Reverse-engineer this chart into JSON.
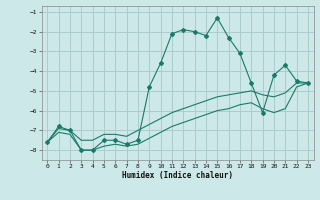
{
  "bg_color": "#cce8e8",
  "grid_color": "#aacccc",
  "line_color": "#1a7a6a",
  "marker_color": "#1a7a6a",
  "xlabel": "Humidex (Indice chaleur)",
  "xlim": [
    -0.5,
    23.5
  ],
  "ylim": [
    -8.5,
    -0.7
  ],
  "yticks": [
    -8,
    -7,
    -6,
    -5,
    -4,
    -3,
    -2,
    -1
  ],
  "xticks": [
    0,
    1,
    2,
    3,
    4,
    5,
    6,
    7,
    8,
    9,
    10,
    11,
    12,
    13,
    14,
    15,
    16,
    17,
    18,
    19,
    20,
    21,
    22,
    23
  ],
  "main_x": [
    0,
    1,
    2,
    3,
    4,
    5,
    6,
    7,
    8,
    9,
    10,
    11,
    12,
    13,
    14,
    15,
    16,
    17,
    18,
    19,
    20,
    21,
    22,
    23
  ],
  "main_y": [
    -7.6,
    -6.8,
    -7.0,
    -8.0,
    -8.0,
    -7.5,
    -7.5,
    -7.7,
    -7.5,
    -4.8,
    -3.6,
    -2.1,
    -1.9,
    -2.0,
    -2.2,
    -1.3,
    -2.3,
    -3.1,
    -4.6,
    -6.1,
    -4.2,
    -3.7,
    -4.5,
    -4.6
  ],
  "lower_x": [
    0,
    1,
    2,
    3,
    4,
    5,
    6,
    7,
    8,
    9,
    10,
    11,
    12,
    13,
    14,
    15,
    16,
    17,
    18,
    19,
    20,
    21,
    22,
    23
  ],
  "lower_y": [
    -7.6,
    -7.1,
    -7.2,
    -8.0,
    -8.0,
    -7.8,
    -7.7,
    -7.8,
    -7.7,
    -7.4,
    -7.1,
    -6.8,
    -6.6,
    -6.4,
    -6.2,
    -6.0,
    -5.9,
    -5.7,
    -5.6,
    -5.9,
    -6.1,
    -5.9,
    -4.8,
    -4.6
  ],
  "upper_x": [
    0,
    1,
    2,
    3,
    4,
    5,
    6,
    7,
    8,
    9,
    10,
    11,
    12,
    13,
    14,
    15,
    16,
    17,
    18,
    19,
    20,
    21,
    22,
    23
  ],
  "upper_y": [
    -7.6,
    -6.9,
    -7.0,
    -7.5,
    -7.5,
    -7.2,
    -7.2,
    -7.3,
    -7.0,
    -6.7,
    -6.4,
    -6.1,
    -5.9,
    -5.7,
    -5.5,
    -5.3,
    -5.2,
    -5.1,
    -5.0,
    -5.2,
    -5.3,
    -5.1,
    -4.6,
    -4.6
  ]
}
